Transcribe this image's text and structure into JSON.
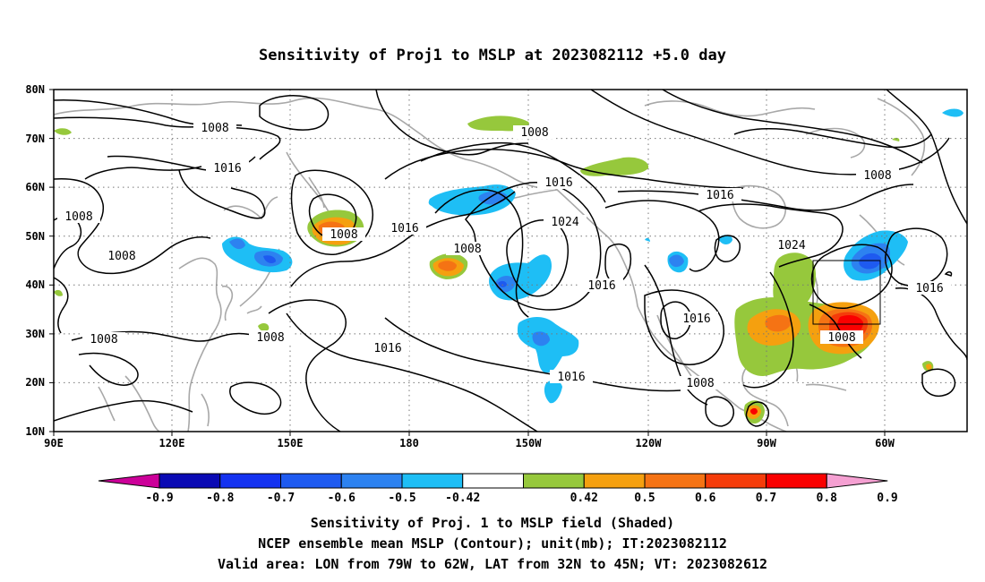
{
  "title": "Sensitivity of Proj1 to MSLP at 2023082112 +5.0 day",
  "map": {
    "lat_labels": [
      "80N",
      "70N",
      "60N",
      "50N",
      "40N",
      "30N",
      "20N",
      "10N"
    ],
    "lon_labels": [
      "90E",
      "120E",
      "150E",
      "180",
      "150W",
      "120W",
      "90W",
      "60W"
    ],
    "contour_labels": [
      "1008",
      "1008",
      "1016",
      "1008",
      "1008",
      "1008",
      "1008",
      "1016",
      "1008",
      "1016",
      "1008",
      "1016",
      "1024",
      "1016",
      "1016",
      "1016",
      "1016",
      "1008",
      "1016",
      "1024",
      "1008",
      "1008",
      "1016"
    ],
    "valid_box": {
      "lon_from": "79W",
      "lon_to": "62W",
      "lat_from": "32N",
      "lat_to": "45N"
    }
  },
  "colorbar": {
    "labels": [
      "-0.9",
      "-0.8",
      "-0.7",
      "-0.6",
      "-0.5",
      "-0.42",
      "0.42",
      "0.5",
      "0.6",
      "0.7",
      "0.8",
      "0.9"
    ],
    "colors": [
      "#cc0099",
      "#0a0ab4",
      "#1432f0",
      "#1e5af0",
      "#2d82f0",
      "#1ebef5",
      "#ffffff",
      "#96c83c",
      "#f5a00f",
      "#f57314",
      "#f53c0a",
      "#fa0000",
      "#f5a0d2"
    ]
  },
  "footer": {
    "line1": "Sensitivity of Proj. 1 to MSLP field (Shaded)",
    "line2": "NCEP ensemble mean MSLP (Contour); unit(mb); IT:2023082112",
    "line3": "Valid area: LON from 79W to 62W, LAT from 32N to 45N; VT: 2023082612"
  }
}
